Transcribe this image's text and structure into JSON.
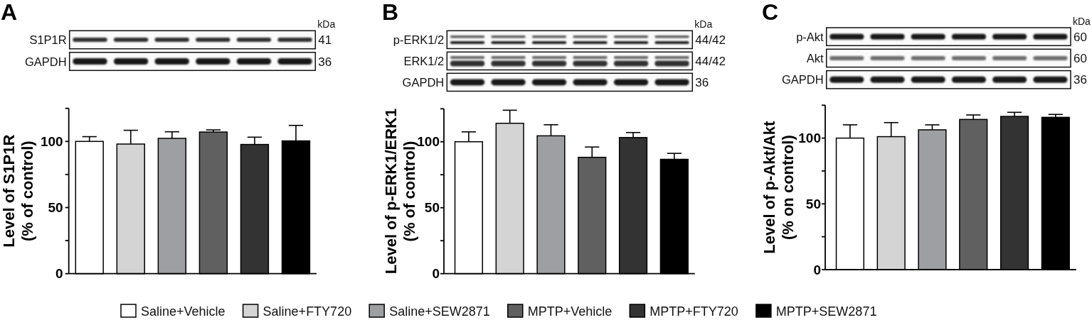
{
  "chart_data": [
    {
      "type": "bar",
      "title": "A",
      "ylabel": "Level of S1P1R\n(% of control)",
      "categories": [
        null
      ],
      "tick_labels": "y",
      "series": [
        {
          "color": "#ffffff",
          "values": [
            100
          ],
          "errors": [
            [
              100,
              103.6
            ]
          ]
        },
        {
          "color": "#d4d4d4",
          "values": [
            98.0
          ],
          "errors": [
            [
              98.0,
              108.4
            ]
          ]
        },
        {
          "color": "#9e9fa3",
          "values": [
            102.3
          ],
          "errors": [
            [
              102.3,
              107.3
            ]
          ]
        },
        {
          "color": "#606060",
          "values": [
            107.1
          ],
          "errors": [
            [
              107.1,
              108.7
            ]
          ]
        },
        {
          "color": "#333333",
          "values": [
            97.7
          ],
          "errors": [
            [
              97.7,
              103.2
            ]
          ]
        },
        {
          "color": "#000000",
          "values": [
            100.4
          ],
          "errors": [
            [
              100.4,
              112.1
            ]
          ]
        }
      ],
      "ylim": [
        0,
        125
      ],
      "yticks": [
        0,
        {
          "value": 25,
          "label": null
        },
        50,
        {
          "value": 75,
          "label": null
        },
        100,
        {
          "value": 125,
          "label": null
        }
      ],
      "annotations": [
        "S1P1R",
        "GAPDH",
        "41",
        "36",
        "kDa"
      ]
    },
    {
      "type": "bar",
      "title": "B",
      "ylabel": "Level of p-ERK1/ERK1\n(% of control)",
      "categories": [
        null
      ],
      "tick_labels": "y",
      "legend": "bottom",
      "series": [
        {
          "name": "Saline+Vehicle",
          "color": "#ffffff",
          "values": [
            100
          ],
          "errors": [
            [
              100,
              107.5
            ]
          ]
        },
        {
          "name": "Saline+FTY720",
          "color": "#d4d4d4",
          "values": [
            114.0
          ],
          "errors": [
            [
              114.0,
              123.9
            ]
          ]
        },
        {
          "name": "Saline+SEW2871",
          "color": "#9e9fa3",
          "values": [
            104.5
          ],
          "errors": [
            [
              104.5,
              112.9
            ]
          ]
        },
        {
          "name": "MPTP+Vehicle",
          "color": "#606060",
          "values": [
            88.2
          ],
          "errors": [
            [
              88.2,
              96.0
            ]
          ]
        },
        {
          "name": "MPTP+FTY720",
          "color": "#333333",
          "values": [
            103.2
          ],
          "errors": [
            [
              103.2,
              107.0
            ]
          ]
        },
        {
          "name": "MPTP+SEW2871",
          "color": "#000000",
          "values": [
            86.7
          ],
          "errors": [
            [
              86.7,
              91.2
            ]
          ]
        }
      ],
      "ylim": [
        0,
        125
      ],
      "yticks": [
        0,
        {
          "value": 25,
          "label": null
        },
        50,
        {
          "value": 75,
          "label": null
        },
        100,
        {
          "value": 125,
          "label": null
        }
      ],
      "annotations": [
        "p-ERK1/2",
        "ERK1/2",
        "GAPDH",
        "44/42",
        "44/42",
        "36",
        "kDa"
      ]
    },
    {
      "type": "bar",
      "title": "C",
      "ylabel": "Level of p-Akt/Akt\n(% on control)",
      "categories": [
        null
      ],
      "tick_labels": "y",
      "series": [
        {
          "color": "#ffffff",
          "values": [
            100
          ],
          "errors": [
            [
              100,
              110.1
            ]
          ]
        },
        {
          "color": "#d4d4d4",
          "values": [
            101.1
          ],
          "errors": [
            [
              101.1,
              111.8
            ]
          ]
        },
        {
          "color": "#9e9fa3",
          "values": [
            106.3
          ],
          "errors": [
            [
              106.3,
              110.1
            ]
          ]
        },
        {
          "color": "#606060",
          "values": [
            114.2
          ],
          "errors": [
            [
              114.2,
              117.6
            ]
          ]
        },
        {
          "color": "#333333",
          "values": [
            116.5
          ],
          "errors": [
            [
              116.5,
              119.6
            ]
          ]
        },
        {
          "color": "#000000",
          "values": [
            115.8
          ],
          "errors": [
            [
              115.8,
              118.0
            ]
          ]
        }
      ],
      "ylim": [
        0,
        125
      ],
      "yticks": [
        0,
        {
          "value": 25,
          "label": null
        },
        50,
        {
          "value": 75,
          "label": null
        },
        100,
        {
          "value": 125,
          "label": null
        }
      ],
      "annotations": [
        "p-Akt",
        "Akt",
        "GAPDH",
        "60",
        "60",
        "36",
        "kDa"
      ]
    }
  ]
}
